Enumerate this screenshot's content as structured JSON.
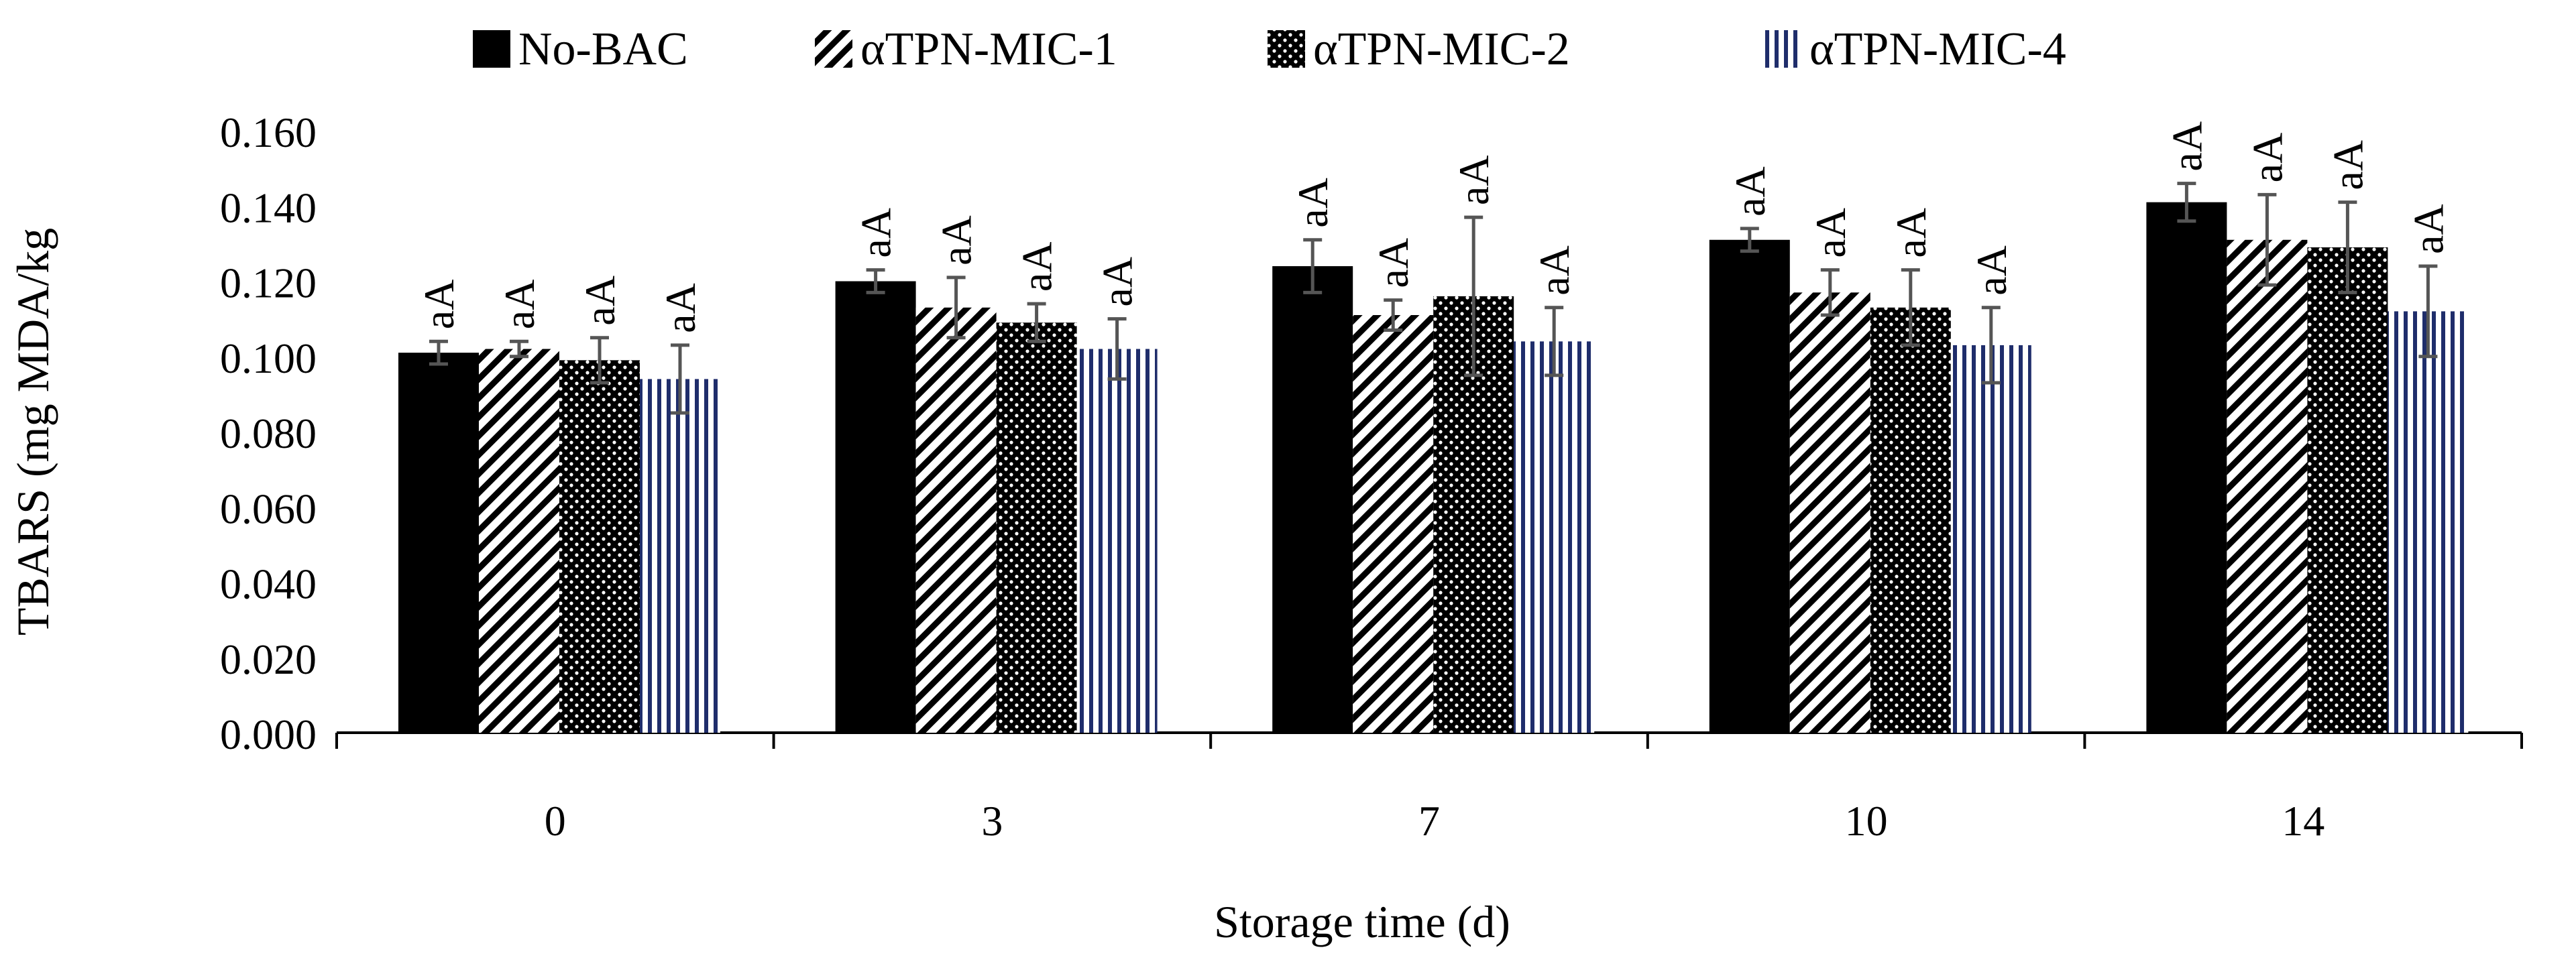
{
  "chart_data": {
    "type": "bar",
    "xlabel": "Storage time (d)",
    "ylabel": "TBARS (mg MDA/kg",
    "categories": [
      "0",
      "3",
      "7",
      "10",
      "14"
    ],
    "ylim": [
      0,
      0.16
    ],
    "yticks": [
      "0.000",
      "0.020",
      "0.040",
      "0.060",
      "0.080",
      "0.100",
      "0.120",
      "0.140",
      "0.160"
    ],
    "grid": false,
    "legend_position": "top",
    "series": [
      {
        "name": "No-BAC",
        "fill": "solid",
        "color": "#000000",
        "values": [
          0.101,
          0.12,
          0.124,
          0.131,
          0.141
        ],
        "errors": [
          0.003,
          0.003,
          0.007,
          0.003,
          0.005
        ],
        "labels": [
          "aA",
          "aA",
          "aA",
          "aA",
          "aA"
        ]
      },
      {
        "name": "αTPN-MIC-1",
        "fill": "diagonal",
        "color": "#000000",
        "values": [
          0.102,
          0.113,
          0.111,
          0.117,
          0.131
        ],
        "errors": [
          0.002,
          0.008,
          0.004,
          0.006,
          0.012
        ],
        "labels": [
          "aA",
          "aA",
          "aA",
          "aA",
          "aA"
        ]
      },
      {
        "name": "αTPN-MIC-2",
        "fill": "dots",
        "color": "#000000",
        "values": [
          0.099,
          0.109,
          0.116,
          0.113,
          0.129
        ],
        "errors": [
          0.006,
          0.005,
          0.021,
          0.01,
          0.012
        ],
        "labels": [
          "aA",
          "aA",
          "aA",
          "aA",
          "aA"
        ]
      },
      {
        "name": "αTPN-MIC-4",
        "fill": "vertical",
        "color": "#1f2d6b",
        "values": [
          0.094,
          0.102,
          0.104,
          0.103,
          0.112
        ],
        "errors": [
          0.009,
          0.008,
          0.009,
          0.01,
          0.012
        ],
        "labels": [
          "aA",
          "aA",
          "aA",
          "aA",
          "aA"
        ]
      }
    ]
  }
}
